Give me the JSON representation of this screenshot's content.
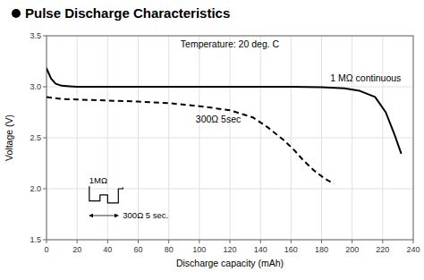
{
  "chart_data": {
    "type": "line",
    "title": "Pulse Discharge Characteristics",
    "subtitle": "Temperature: 20 deg. C",
    "x_label": "Discharge capacity (mAh)",
    "y_label": "Voltage (V)",
    "xlim": [
      0,
      240
    ],
    "ylim": [
      1.5,
      3.5
    ],
    "xticks": [
      0,
      20,
      40,
      60,
      80,
      100,
      120,
      140,
      160,
      180,
      200,
      220,
      240
    ],
    "yticks": [
      1.5,
      {
        "value": 2.0,
        "label": "2.0"
      },
      2.5,
      {
        "value": 3.0,
        "label": "3.0"
      },
      3.5
    ],
    "grid": true,
    "series": [
      {
        "name": "1 MΩ continuous",
        "color": "#000000",
        "line_style": "solid",
        "x": [
          0,
          3,
          6,
          10,
          15,
          20,
          30,
          40,
          60,
          80,
          100,
          120,
          140,
          160,
          180,
          195,
          205,
          215,
          222,
          228,
          232
        ],
        "values": [
          3.18,
          3.08,
          3.03,
          3.01,
          3.005,
          3.0,
          3.0,
          3.0,
          3.0,
          3.0,
          3.0,
          3.0,
          3.0,
          3.0,
          2.995,
          2.985,
          2.96,
          2.9,
          2.75,
          2.52,
          2.35
        ]
      },
      {
        "name": "300Ω 5sec",
        "color": "#000000",
        "line_style": "dashed",
        "x": [
          0,
          10,
          20,
          30,
          40,
          60,
          80,
          100,
          120,
          135,
          145,
          155,
          162,
          168,
          175,
          182,
          188
        ],
        "values": [
          2.9,
          2.88,
          2.875,
          2.87,
          2.865,
          2.855,
          2.84,
          2.81,
          2.77,
          2.7,
          2.6,
          2.48,
          2.38,
          2.28,
          2.18,
          2.1,
          2.05
        ]
      },
      {
        "color": "#000000",
        "line_style": "solid",
        "x": [
          28,
          28,
          35,
          35,
          40,
          40,
          47,
          47,
          50,
          50
        ],
        "values": [
          2.02,
          1.88,
          1.88,
          1.94,
          1.94,
          1.86,
          1.86,
          2.0,
          2.0,
          2.01
        ]
      }
    ],
    "annotations": [
      "1MΩ",
      "300Ω 5 sec."
    ]
  }
}
